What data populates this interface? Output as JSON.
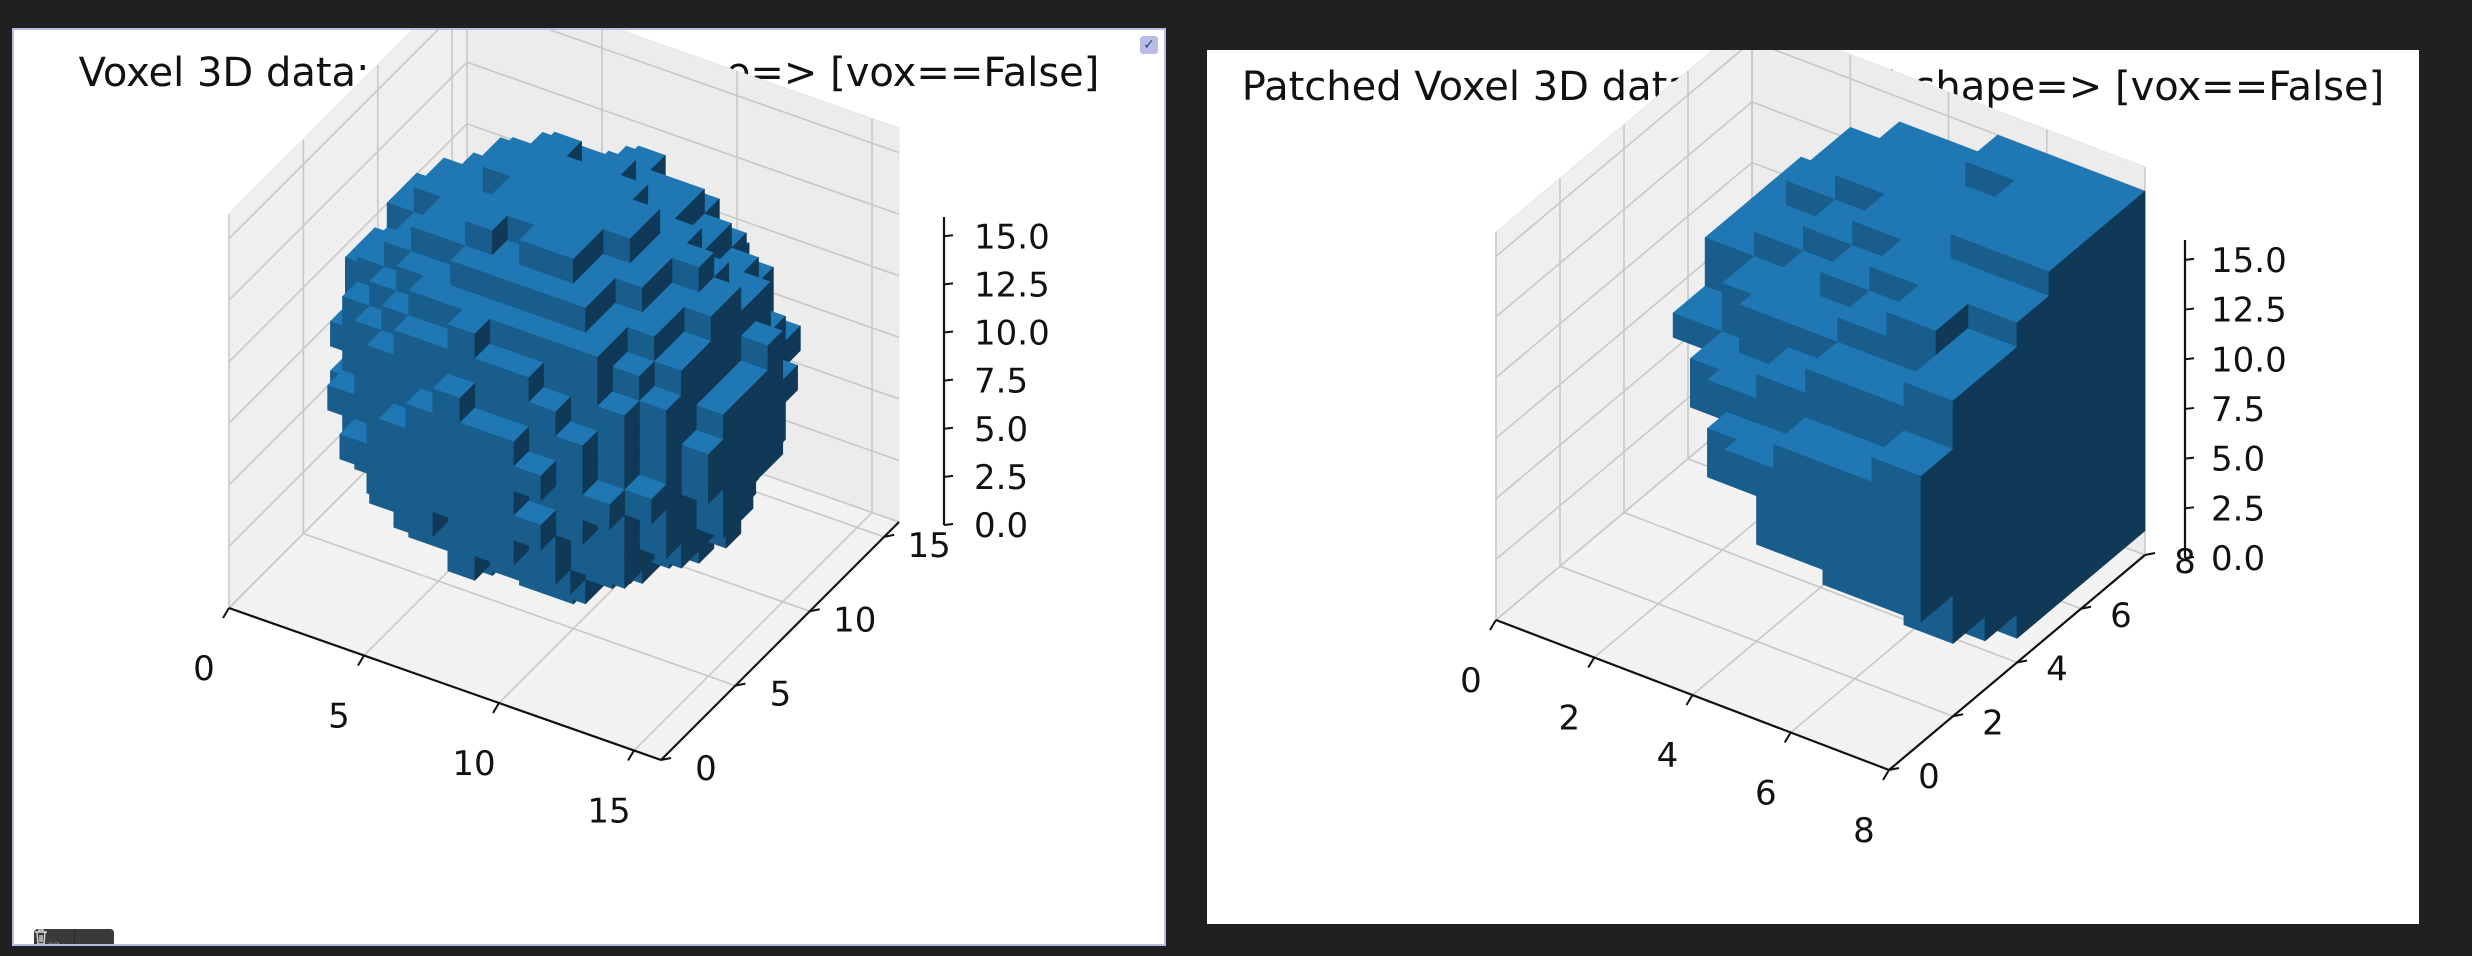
{
  "panels": [
    {
      "title": "Voxel 3D data: (16, 16, 16) shape=> [vox==False]",
      "chart_data": {
        "type": "voxel",
        "shape": [
          16,
          16,
          16
        ],
        "title": "Voxel 3D data: (16, 16, 16) shape=> [vox==False]",
        "x_ticks": [
          "0",
          "5",
          "10",
          "15"
        ],
        "y_ticks": [
          "0",
          "5",
          "10",
          "15"
        ],
        "z_ticks": [
          "0.0",
          "2.5",
          "5.0",
          "7.5",
          "10.0",
          "12.5",
          "15.0"
        ],
        "xlim": [
          0,
          16
        ],
        "ylim": [
          0,
          16
        ],
        "zlim": [
          0,
          16
        ],
        "color": "#1f77b4",
        "solid": "sphere"
      }
    },
    {
      "title": "Patched Voxel 3D data: (8, 8, 16) shape=> [vox==False]",
      "chart_data": {
        "type": "voxel",
        "shape": [
          8,
          8,
          16
        ],
        "title": "Patched Voxel 3D data: (8, 8, 16) shape=> [vox==False]",
        "x_ticks": [
          "0",
          "2",
          "4",
          "6",
          "8"
        ],
        "y_ticks": [
          "0",
          "2",
          "4",
          "6",
          "8"
        ],
        "z_ticks": [
          "0.0",
          "2.5",
          "5.0",
          "7.5",
          "10.0",
          "12.5",
          "15.0"
        ],
        "xlim": [
          0,
          8
        ],
        "ylim": [
          0,
          8
        ],
        "zlim": [
          0,
          16
        ],
        "color": "#1f77b4",
        "solid": "half-sphere-patch"
      }
    }
  ],
  "toolbar": {
    "favorite_icon": "heart-icon",
    "delete_icon": "trash-icon"
  },
  "selection_icon": "check-icon"
}
